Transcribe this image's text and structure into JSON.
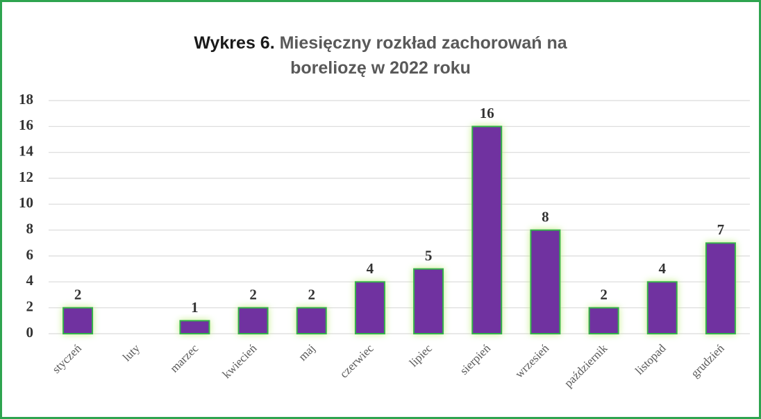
{
  "chart_data": {
    "type": "bar",
    "title_prefix": "Wykres 6.",
    "title_lines": [
      "Miesięczny rozkład zachorowań na",
      "boreliozę w 2022 roku"
    ],
    "categories": [
      "styczeń",
      "luty",
      "marzec",
      "kwiecień",
      "maj",
      "czerwiec",
      "lipiec",
      "sierpień",
      "wrzesień",
      "październik",
      "listopad",
      "grudzień"
    ],
    "values": [
      2,
      null,
      1,
      2,
      2,
      4,
      5,
      16,
      8,
      2,
      4,
      7
    ],
    "color": "#7030a0",
    "edge_color": "#33b24a",
    "ylim": [
      0,
      18
    ],
    "yticks": [
      0,
      2,
      4,
      6,
      8,
      10,
      12,
      14,
      16,
      18
    ],
    "grid": true
  }
}
